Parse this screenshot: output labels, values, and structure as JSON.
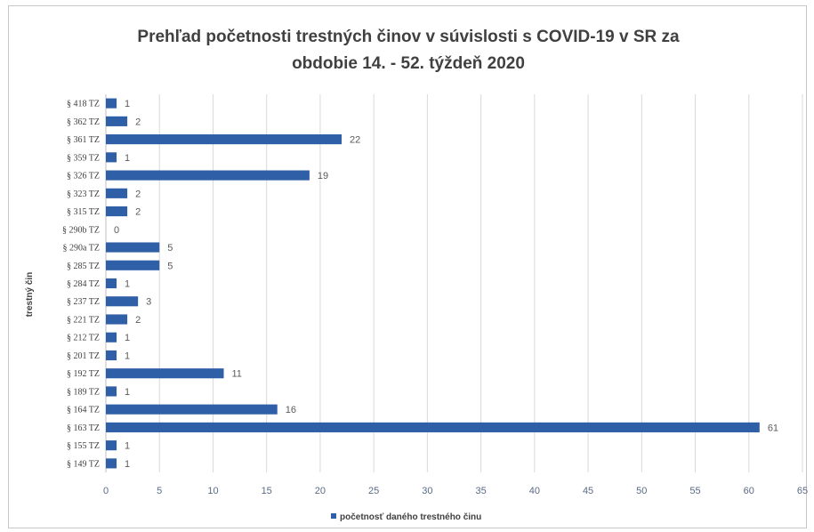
{
  "chart_data": {
    "type": "bar",
    "orientation": "horizontal",
    "title_line1": "Prehľad početnosti trestných činov v súvislosti s COVID-19 v SR za",
    "title_line2": "obdobie 14. - 52. týždeň 2020",
    "ylabel": "trestný čin",
    "xlabel": "",
    "xlim": [
      0,
      65
    ],
    "x_ticks": [
      0,
      5,
      10,
      15,
      20,
      25,
      30,
      35,
      40,
      45,
      50,
      55,
      60,
      65
    ],
    "grid": true,
    "legend_position": "bottom",
    "categories": [
      "§ 418 TZ",
      "§ 362 TZ",
      "§ 361 TZ",
      "§ 359 TZ",
      "§ 326 TZ",
      "§ 323 TZ",
      "§ 315 TZ",
      "§ 290b TZ",
      "§ 290a TZ",
      "§ 285 TZ",
      "§ 284 TZ",
      "§ 237 TZ",
      "§ 221 TZ",
      "§ 212 TZ",
      "§ 201 TZ",
      "§ 192 TZ",
      "§ 189 TZ",
      "§ 164 TZ",
      "§ 163 TZ",
      "§ 155 TZ",
      "§ 149 TZ"
    ],
    "series": [
      {
        "name": "početnosť daného trestného činu",
        "color": "#2e5fa7",
        "values": [
          1,
          2,
          22,
          1,
          19,
          2,
          2,
          0,
          5,
          5,
          1,
          3,
          2,
          1,
          1,
          11,
          1,
          16,
          61,
          1,
          1
        ]
      }
    ]
  }
}
